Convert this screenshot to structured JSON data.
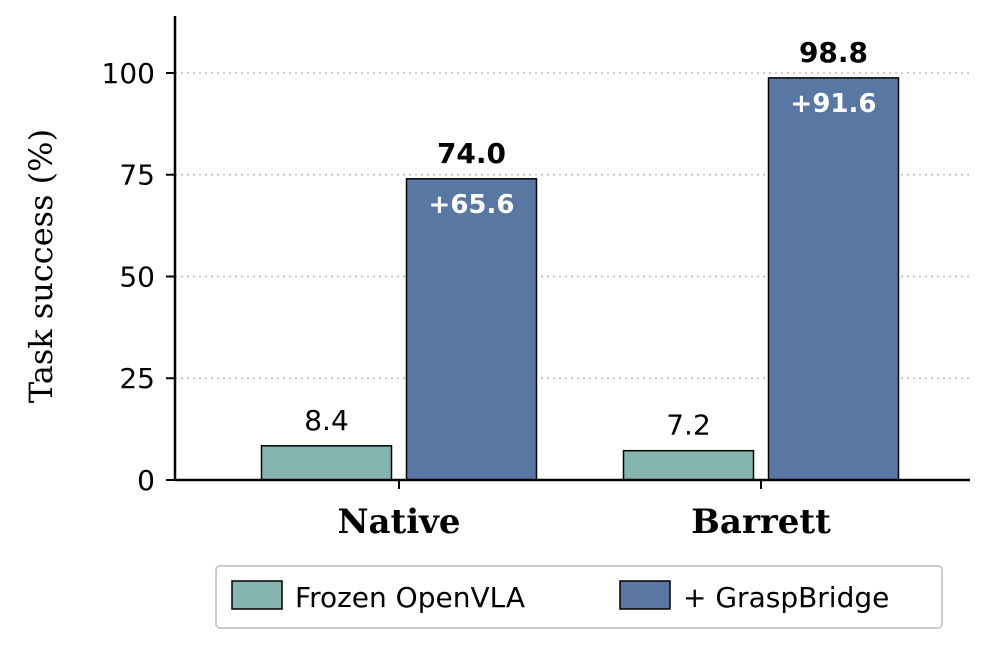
{
  "chart_data": {
    "type": "bar",
    "title": "",
    "xlabel": "",
    "ylabel": "Task success (%)",
    "ylim": [
      0,
      114
    ],
    "yticks": [
      0,
      25,
      50,
      75,
      100
    ],
    "ytick_labels": [
      "0",
      "25",
      "50",
      "75",
      "100"
    ],
    "grid": "horizontal dotted",
    "categories": [
      "Native",
      "Barrett"
    ],
    "series": [
      {
        "name": "Frozen OpenVLA",
        "color": "#86b5b0",
        "values": [
          8.4,
          7.2
        ],
        "value_labels": [
          "8.4",
          "7.2"
        ]
      },
      {
        "name": "+ GraspBridge",
        "color": "#5877a3",
        "values": [
          74.0,
          98.8
        ],
        "value_labels": [
          "74.0",
          "98.8"
        ],
        "gain_labels": [
          "+65.6",
          "+91.6"
        ]
      }
    ],
    "legend": {
      "placement": "bottom-center",
      "entries": [
        "Frozen OpenVLA",
        "+ GraspBridge"
      ]
    }
  }
}
